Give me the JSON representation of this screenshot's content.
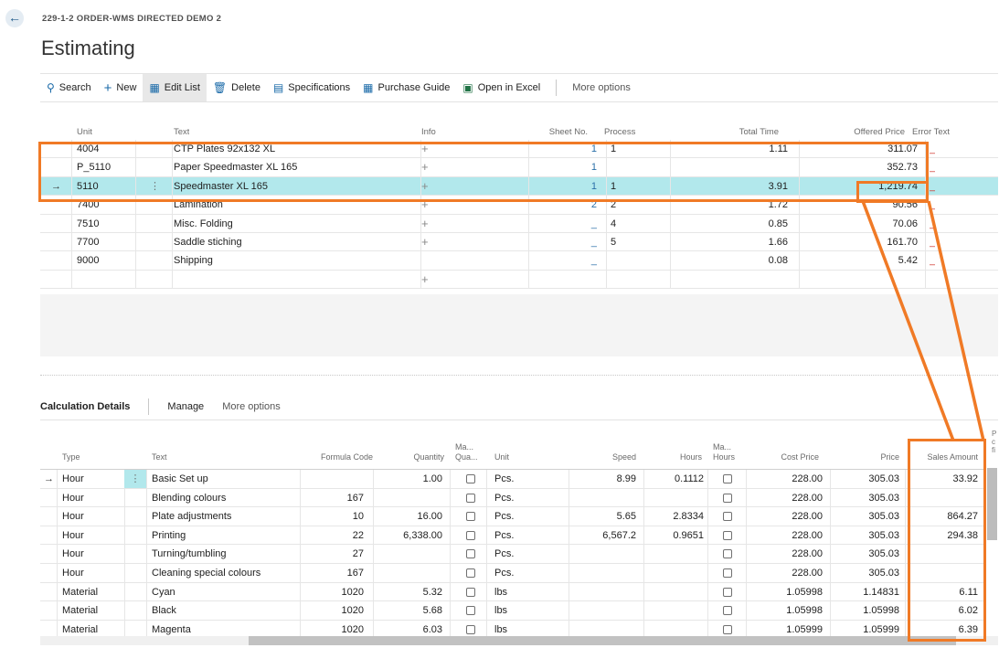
{
  "breadcrumb": "229-1-2 ORDER-WMS DIRECTED DEMO 2",
  "page_title": "Estimating",
  "toolbar": {
    "search": "Search",
    "new": "New",
    "edit_list": "Edit List",
    "delete": "Delete",
    "specifications": "Specifications",
    "purchase_guide": "Purchase Guide",
    "open_in_excel": "Open in Excel",
    "more_options": "More options"
  },
  "estimate_table": {
    "headers": {
      "unit": "Unit",
      "text": "Text",
      "info": "Info",
      "sheet_no": "Sheet No.",
      "process": "Process",
      "total_time": "Total Time",
      "offered_price": "Offered Price",
      "error_text": "Error Text"
    },
    "rows": [
      {
        "unit": "4004",
        "text": "CTP Plates 92x132 XL",
        "info": "+",
        "sheet_no": "1",
        "process": "1",
        "total_time": "1.11",
        "offered_price": "311.07",
        "error_text": "_"
      },
      {
        "unit": "P_5110",
        "text": "Paper Speedmaster XL 165",
        "info": "+",
        "sheet_no": "1",
        "process": "",
        "total_time": "",
        "offered_price": "352.73",
        "error_text": "_"
      },
      {
        "unit": "5110",
        "text": "Speedmaster XL 165",
        "info": "+",
        "sheet_no": "1",
        "process": "1",
        "total_time": "3.91",
        "offered_price": "1,219.74",
        "error_text": "_"
      },
      {
        "unit": "7400",
        "text": "Lamination",
        "info": "+",
        "sheet_no": "2",
        "process": "2",
        "total_time": "1.72",
        "offered_price": "90.56",
        "error_text": "_"
      },
      {
        "unit": "7510",
        "text": "Misc. Folding",
        "info": "+",
        "sheet_no": "_",
        "process": "4",
        "total_time": "0.85",
        "offered_price": "70.06",
        "error_text": "_"
      },
      {
        "unit": "7700",
        "text": "Saddle stiching",
        "info": "+",
        "sheet_no": "_",
        "process": "5",
        "total_time": "1.66",
        "offered_price": "161.70",
        "error_text": "_"
      },
      {
        "unit": "9000",
        "text": "Shipping",
        "info": "",
        "sheet_no": "_",
        "process": "",
        "total_time": "0.08",
        "offered_price": "5.42",
        "error_text": "_"
      },
      {
        "unit": "",
        "text": "",
        "info": "+",
        "sheet_no": "",
        "process": "",
        "total_time": "",
        "offered_price": "",
        "error_text": ""
      }
    ]
  },
  "details_tabs": {
    "calculation_details": "Calculation Details",
    "manage": "Manage",
    "more_options": "More options"
  },
  "details_table": {
    "headers": {
      "type": "Type",
      "text": "Text",
      "formula_code": "Formula Code",
      "quantity": "Quantity",
      "manual_quantity_1": "Ma...",
      "manual_quantity_2": "Qua...",
      "unit": "Unit",
      "speed": "Speed",
      "hours": "Hours",
      "manual_hours_1": "Ma...",
      "manual_hours_2": "Hours",
      "cost_price": "Cost Price",
      "price": "Price",
      "sales_amount": "Sales Amount",
      "extra_1": "P",
      "extra_2": "c",
      "extra_3": "fi"
    },
    "rows": [
      {
        "type": "Hour",
        "text": "Basic Set up",
        "formula_code": "",
        "quantity": "1.00",
        "unit": "Pcs.",
        "speed": "8.99",
        "hours": "0.1112",
        "cost_price": "228.00",
        "price": "305.03",
        "sales_amount": "33.92"
      },
      {
        "type": "Hour",
        "text": "Blending colours",
        "formula_code": "167",
        "quantity": "",
        "unit": "Pcs.",
        "speed": "",
        "hours": "",
        "cost_price": "228.00",
        "price": "305.03",
        "sales_amount": ""
      },
      {
        "type": "Hour",
        "text": "Plate adjustments",
        "formula_code": "10",
        "quantity": "16.00",
        "unit": "Pcs.",
        "speed": "5.65",
        "hours": "2.8334",
        "cost_price": "228.00",
        "price": "305.03",
        "sales_amount": "864.27"
      },
      {
        "type": "Hour",
        "text": "Printing",
        "formula_code": "22",
        "quantity": "6,338.00",
        "unit": "Pcs.",
        "speed": "6,567.2",
        "hours": "0.9651",
        "cost_price": "228.00",
        "price": "305.03",
        "sales_amount": "294.38"
      },
      {
        "type": "Hour",
        "text": "Turning/tumbling",
        "formula_code": "27",
        "quantity": "",
        "unit": "Pcs.",
        "speed": "",
        "hours": "",
        "cost_price": "228.00",
        "price": "305.03",
        "sales_amount": ""
      },
      {
        "type": "Hour",
        "text": "Cleaning special colours",
        "formula_code": "167",
        "quantity": "",
        "unit": "Pcs.",
        "speed": "",
        "hours": "",
        "cost_price": "228.00",
        "price": "305.03",
        "sales_amount": ""
      },
      {
        "type": "Material",
        "text": "Cyan",
        "formula_code": "1020",
        "quantity": "5.32",
        "unit": "lbs",
        "speed": "",
        "hours": "",
        "cost_price": "1.05998",
        "price": "1.14831",
        "sales_amount": "6.11"
      },
      {
        "type": "Material",
        "text": "Black",
        "formula_code": "1020",
        "quantity": "5.68",
        "unit": "lbs",
        "speed": "",
        "hours": "",
        "cost_price": "1.05998",
        "price": "1.05998",
        "sales_amount": "6.02"
      },
      {
        "type": "Material",
        "text": "Magenta",
        "formula_code": "1020",
        "quantity": "6.03",
        "unit": "lbs",
        "speed": "",
        "hours": "",
        "cost_price": "1.05999",
        "price": "1.05999",
        "sales_amount": "6.39"
      }
    ]
  },
  "colors": {
    "accent": "#2a6fa8",
    "selected_row": "#b2e8ec",
    "highlight": "#f07a26",
    "error": "#d0322b"
  }
}
